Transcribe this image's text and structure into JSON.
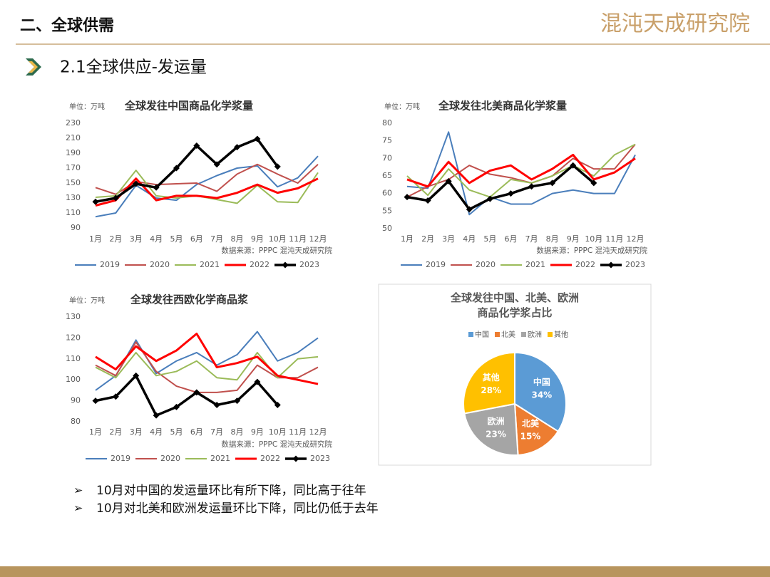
{
  "header": {
    "title": "二、全球供需",
    "logo": "混沌天成研究院"
  },
  "section": {
    "title": "2.1全球供应-发运量"
  },
  "chart_data": [
    {
      "type": "line",
      "title": "全球发往中国商品化学浆量",
      "unit": "单位：万吨",
      "source": "数据来源：PPPC 混沌天成研究院",
      "categories": [
        "1月",
        "2月",
        "3月",
        "4月",
        "5月",
        "6月",
        "7月",
        "8月",
        "9月",
        "10月",
        "11月",
        "12月"
      ],
      "ylim": [
        90,
        230
      ],
      "yticks": [
        90,
        110,
        130,
        150,
        170,
        190,
        210,
        230
      ],
      "grid": false,
      "series": [
        {
          "name": "2019",
          "color": "#4a7ebb",
          "width": 2,
          "values": [
            105,
            110,
            147,
            130,
            127,
            148,
            160,
            170,
            173,
            145,
            157,
            186
          ]
        },
        {
          "name": "2020",
          "color": "#c0504d",
          "width": 2,
          "values": [
            144,
            135,
            152,
            148,
            149,
            150,
            139,
            162,
            175,
            162,
            150,
            175
          ]
        },
        {
          "name": "2021",
          "color": "#9bbb59",
          "width": 2,
          "values": [
            131,
            133,
            167,
            133,
            130,
            133,
            128,
            123,
            147,
            125,
            124,
            164
          ]
        },
        {
          "name": "2022",
          "color": "#ff0000",
          "width": 3,
          "values": [
            120,
            127,
            156,
            127,
            133,
            133,
            130,
            137,
            148,
            137,
            143,
            156
          ]
        },
        {
          "name": "2023",
          "color": "#000000",
          "width": 3.5,
          "marker": "diamond",
          "values": [
            125,
            130,
            149,
            144,
            170,
            200,
            175,
            198,
            209,
            172,
            null,
            null
          ]
        }
      ]
    },
    {
      "type": "line",
      "title": "全球发往北美商品化学浆量",
      "unit": "单位：万吨",
      "source": "数据来源：PPPC 混沌天成研究院",
      "categories": [
        "1月",
        "2月",
        "3月",
        "4月",
        "5月",
        "6月",
        "7月",
        "8月",
        "9月",
        "10月",
        "11月",
        "12月"
      ],
      "ylim": [
        50,
        80
      ],
      "yticks": [
        50,
        55,
        60,
        65,
        70,
        75,
        80
      ],
      "grid": false,
      "series": [
        {
          "name": "2019",
          "color": "#4a7ebb",
          "width": 2,
          "values": [
            62,
            61.5,
            77.5,
            54,
            59,
            57,
            57,
            60,
            61,
            60,
            60,
            71
          ]
        },
        {
          "name": "2020",
          "color": "#c0504d",
          "width": 2,
          "values": [
            59,
            62,
            64,
            68,
            65.5,
            64.5,
            63,
            65,
            70,
            67,
            67,
            74
          ]
        },
        {
          "name": "2021",
          "color": "#9bbb59",
          "width": 2,
          "values": [
            65,
            59.5,
            67,
            61,
            59,
            64,
            63,
            65,
            68,
            65,
            71,
            74
          ]
        },
        {
          "name": "2022",
          "color": "#ff0000",
          "width": 3,
          "values": [
            64,
            62,
            69,
            63,
            66.5,
            68,
            64,
            67,
            71,
            64,
            66,
            70
          ]
        },
        {
          "name": "2023",
          "color": "#000000",
          "width": 3.5,
          "marker": "diamond",
          "values": [
            59,
            58,
            63.5,
            55.5,
            58.5,
            60,
            62,
            63,
            68,
            63,
            null,
            null
          ]
        }
      ]
    },
    {
      "type": "line",
      "title": "全球发往西欧化学商品浆",
      "unit": "单位：万吨",
      "source": "数据来源：PPPC 混沌天成研究院",
      "categories": [
        "1月",
        "2月",
        "3月",
        "4月",
        "5月",
        "6月",
        "7月",
        "8月",
        "9月",
        "10月",
        "11月",
        "12月"
      ],
      "ylim": [
        80,
        130
      ],
      "yticks": [
        80,
        90,
        100,
        110,
        120,
        130
      ],
      "grid": false,
      "series": [
        {
          "name": "2019",
          "color": "#4a7ebb",
          "width": 2,
          "values": [
            95,
            102,
            119,
            103,
            109,
            113,
            107,
            112,
            123,
            109,
            113,
            120
          ]
        },
        {
          "name": "2020",
          "color": "#c0504d",
          "width": 2,
          "values": [
            107,
            102,
            118,
            104,
            97,
            94,
            94,
            95,
            107,
            101,
            101,
            106
          ]
        },
        {
          "name": "2021",
          "color": "#9bbb59",
          "width": 2,
          "values": [
            106,
            101,
            113,
            102,
            104,
            109,
            101,
            100,
            113,
            101,
            110,
            111
          ]
        },
        {
          "name": "2022",
          "color": "#ff0000",
          "width": 3,
          "values": [
            111,
            105,
            116,
            109,
            114,
            122,
            106,
            108,
            111,
            102,
            100,
            98
          ]
        },
        {
          "name": "2023",
          "color": "#000000",
          "width": 3.5,
          "marker": "diamond",
          "values": [
            90,
            92,
            102,
            83,
            87,
            94,
            88,
            90,
            99,
            88,
            null,
            null
          ]
        }
      ]
    },
    {
      "type": "pie",
      "title": "全球发往中国、北美、欧洲商品化学浆占比",
      "categories": [
        "中国",
        "北美",
        "欧洲",
        "其他"
      ],
      "values": [
        34,
        15,
        23,
        28
      ],
      "value_labels": [
        "34%",
        "15%",
        "23%",
        "28%"
      ],
      "colors": [
        "#5b9bd5",
        "#ed7d31",
        "#a5a5a5",
        "#ffc000"
      ],
      "legend": "top"
    }
  ],
  "bullets": [
    "10月对中国的发运量环比有所下降，同比高于往年",
    "10月对北美和欧洲发运量环比下降，同比仍低于去年"
  ]
}
